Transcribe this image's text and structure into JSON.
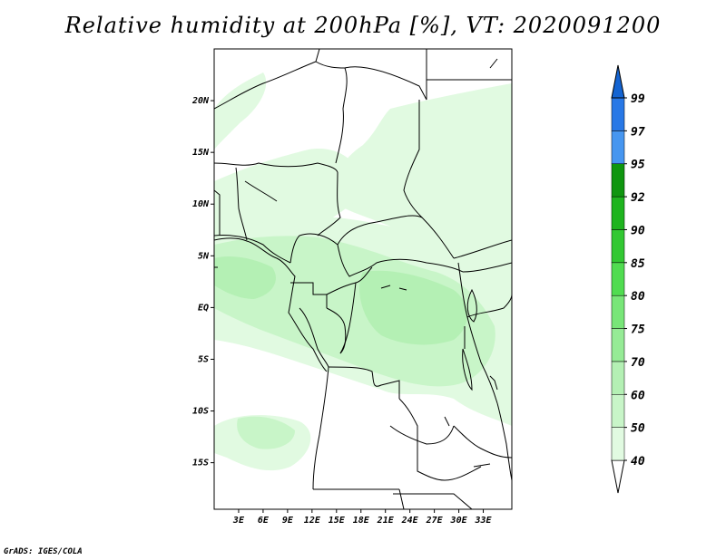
{
  "title": "Relative humidity at 200hPa [%], VT: 2020091200",
  "credit": "GrADS: IGES/COLA",
  "map": {
    "lon_range": [
      0,
      36.5
    ],
    "lat_range": [
      -19.5,
      25
    ],
    "lat_ticks": [
      {
        "lat": 20,
        "label": "20N"
      },
      {
        "lat": 15,
        "label": "15N"
      },
      {
        "lat": 10,
        "label": "10N"
      },
      {
        "lat": 5,
        "label": "5N"
      },
      {
        "lat": 0,
        "label": "EQ"
      },
      {
        "lat": -5,
        "label": "5S"
      },
      {
        "lat": -10,
        "label": "10S"
      },
      {
        "lat": -15,
        "label": "15S"
      }
    ],
    "lon_ticks": [
      {
        "lon": 3,
        "label": "3E"
      },
      {
        "lon": 6,
        "label": "6E"
      },
      {
        "lon": 9,
        "label": "9E"
      },
      {
        "lon": 12,
        "label": "12E"
      },
      {
        "lon": 15,
        "label": "15E"
      },
      {
        "lon": 18,
        "label": "18E"
      },
      {
        "lon": 21,
        "label": "21E"
      },
      {
        "lon": 24,
        "label": "24E"
      },
      {
        "lon": 27,
        "label": "27E"
      },
      {
        "lon": 30,
        "label": "30E"
      },
      {
        "lon": 33,
        "label": "33E"
      }
    ]
  },
  "colorbar": {
    "levels": [
      "40",
      "50",
      "60",
      "70",
      "75",
      "80",
      "85",
      "90",
      "92",
      "95",
      "97",
      "99"
    ],
    "colors": [
      "#ffffff",
      "#e1fae1",
      "#c8f5c8",
      "#b4f0b4",
      "#96eb96",
      "#78e678",
      "#50dc50",
      "#32c832",
      "#1eb41e",
      "#0f960f",
      "#4696f0",
      "#2878e6",
      "#1464d2"
    ]
  },
  "colors": {
    "low_humidity": "#e1fae1",
    "mid_humidity": "#c8f5c8",
    "high_humidity": "#b4f0b4",
    "border": "#000000"
  }
}
